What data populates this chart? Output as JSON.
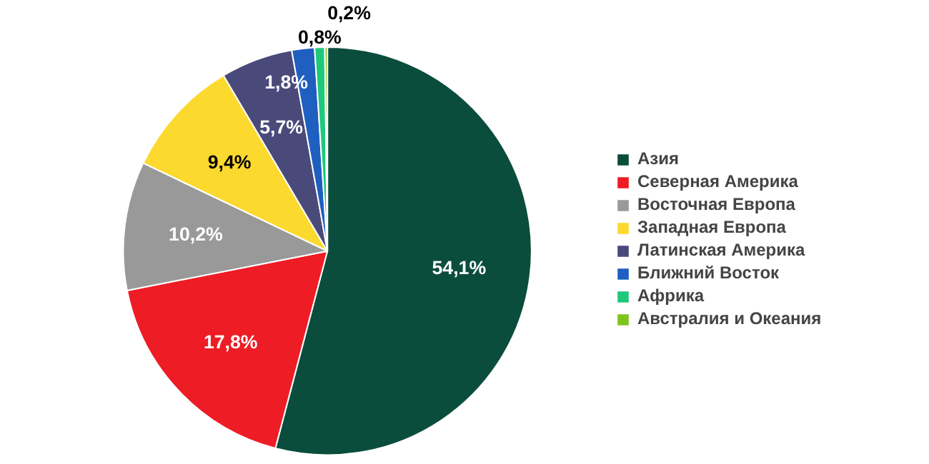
{
  "chart_data": {
    "type": "pie",
    "categories": [
      "Азия",
      "Северная Америка",
      "Восточная Европа",
      "Западная Европа",
      "Латинская Америка",
      "Ближний Восток",
      "Африка",
      "Австралия и Океания"
    ],
    "values": [
      54.1,
      17.8,
      10.2,
      9.4,
      5.7,
      1.8,
      0.8,
      0.2
    ],
    "colors": [
      "#0b4d3c",
      "#ee1c24",
      "#999999",
      "#fcd92f",
      "#4a4a7a",
      "#1f5fbf",
      "#1fc87a",
      "#7fc41e"
    ],
    "value_labels": [
      "54,1%",
      "17,8%",
      "10,2%",
      "9,4%",
      "5,7%",
      "1,8%",
      "0,8%",
      "0,2%"
    ],
    "legend": "right"
  }
}
